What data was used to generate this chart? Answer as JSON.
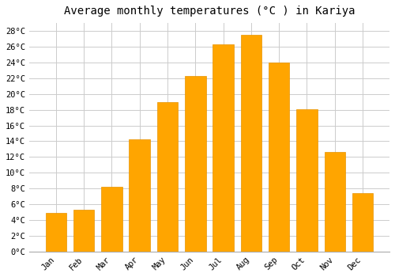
{
  "title": "Average monthly temperatures (°C ) in Kariya",
  "months": [
    "Jan",
    "Feb",
    "Mar",
    "Apr",
    "May",
    "Jun",
    "Jul",
    "Aug",
    "Sep",
    "Oct",
    "Nov",
    "Dec"
  ],
  "temperatures": [
    4.9,
    5.3,
    8.2,
    14.2,
    19.0,
    22.3,
    26.3,
    27.5,
    24.0,
    18.1,
    12.6,
    7.4
  ],
  "bar_color": "#FFA500",
  "bar_edge_color": "#e89400",
  "ylim": [
    0,
    29
  ],
  "yticks": [
    0,
    2,
    4,
    6,
    8,
    10,
    12,
    14,
    16,
    18,
    20,
    22,
    24,
    26,
    28
  ],
  "background_color": "#ffffff",
  "plot_bg_color": "#ffffff",
  "grid_color": "#cccccc",
  "title_fontsize": 10,
  "tick_fontsize": 7.5,
  "font_family": "monospace"
}
